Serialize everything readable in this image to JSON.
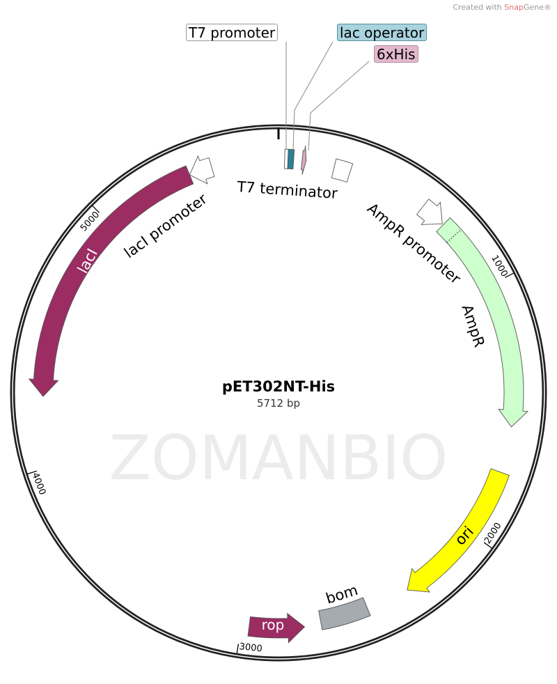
{
  "credit": {
    "prefix": "Created with ",
    "brand": "Snap",
    "brand2": "Gene®"
  },
  "plasmid": {
    "name": "pET302NT-His",
    "length_label": "5712 bp",
    "length_bp": 5712
  },
  "watermark": "ZOMANBIO",
  "ticks": [
    {
      "bp": 1000,
      "label": "1000"
    },
    {
      "bp": 2000,
      "label": "2000"
    },
    {
      "bp": 3000,
      "label": "3000"
    },
    {
      "bp": 4000,
      "label": "4000"
    },
    {
      "bp": 5000,
      "label": "5000"
    }
  ],
  "callouts": {
    "t7_promoter": "T7 promoter",
    "lac_operator": "lac operator",
    "his_tag": "6xHis"
  },
  "labels": {
    "t7_terminator": "T7 terminator",
    "ampr_promoter": "AmpR promoter",
    "ampr": "AmpR",
    "ori": "ori",
    "bom": "bom",
    "rop": "rop",
    "laci": "lacI",
    "laci_promoter": "lacI promoter"
  },
  "features": [
    {
      "id": "t7-promoter",
      "start": 24,
      "end": 37,
      "dir": "none",
      "color": "#ffffff"
    },
    {
      "id": "lac-operator",
      "start": 37,
      "end": 59,
      "dir": "none",
      "color": "#2b7f96"
    },
    {
      "id": "his-tag",
      "start": 92,
      "end": 108,
      "dir": "cw",
      "color": "#d9a7c4"
    },
    {
      "id": "t7-terminator",
      "start": 220,
      "end": 285,
      "dir": "none",
      "color": "#ffffff"
    },
    {
      "id": "ampr-promoter",
      "start": 600,
      "end": 700,
      "dir": "cw",
      "color": "#ffffff"
    },
    {
      "id": "ampr",
      "start": 705,
      "end": 1560,
      "dir": "cw",
      "color": "#ccffcc"
    },
    {
      "id": "ori",
      "start": 1740,
      "end": 2330,
      "dir": "cw",
      "color": "#ffff00"
    },
    {
      "id": "bom",
      "start": 2500,
      "end": 2690,
      "dir": "none",
      "color": "#a6aab1"
    },
    {
      "id": "rop",
      "start": 2755,
      "end": 2970,
      "dir": "ccw",
      "color": "#9b2d63"
    },
    {
      "id": "laci",
      "start": 4270,
      "end": 5360,
      "dir": "ccw",
      "color": "#9b2d63"
    },
    {
      "id": "laci-promoter",
      "start": 5360,
      "end": 5450,
      "dir": "ccw",
      "color": "#ffffff"
    }
  ]
}
